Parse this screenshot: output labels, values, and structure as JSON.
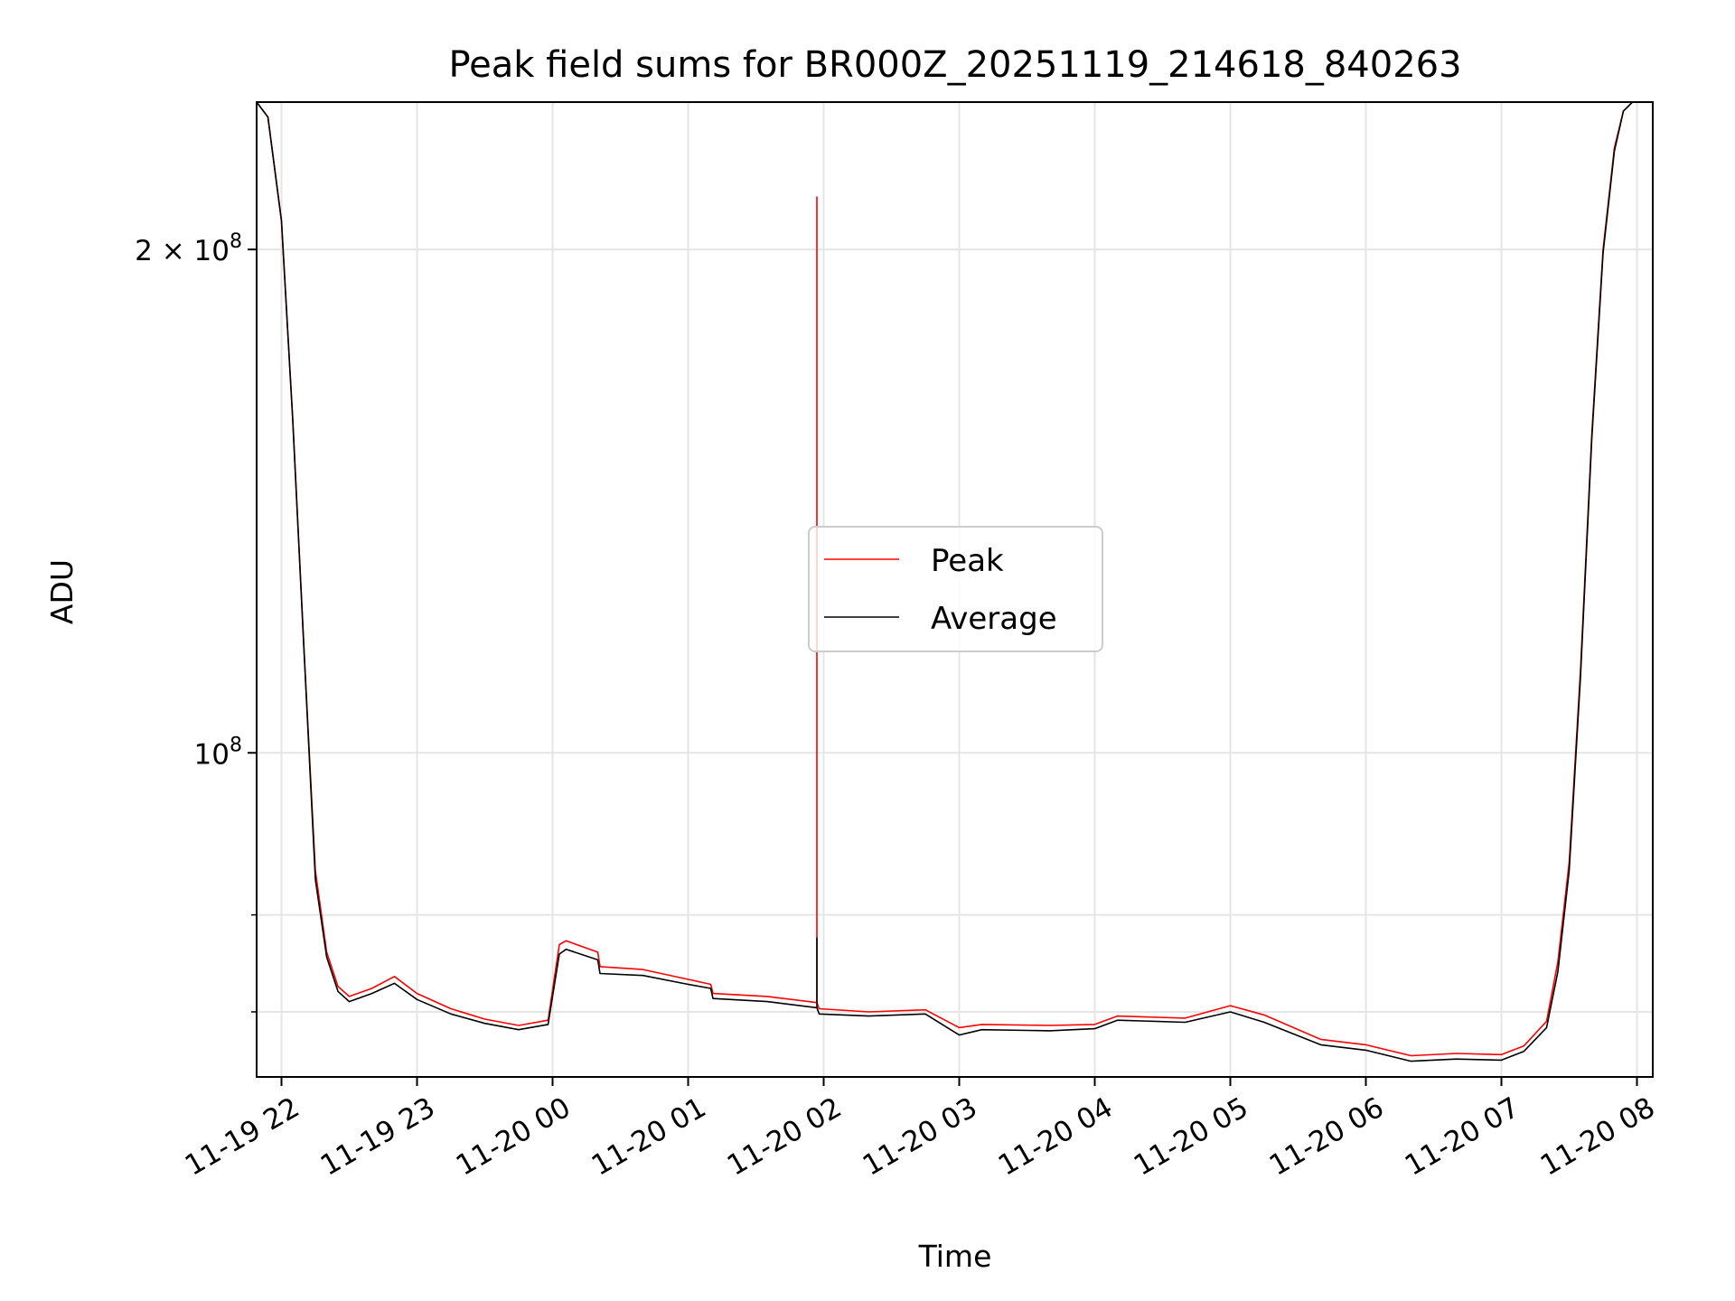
{
  "chart_data": {
    "type": "line",
    "title": "Peak field sums for BR000Z_20251119_214618_840263",
    "xlabel": "Time",
    "ylabel": "ADU",
    "yscale": "log",
    "grid": true,
    "legend_position": "center",
    "xlim": [
      "2025-11-19 21:49",
      "2025-11-20 08:07"
    ],
    "ylim": [
      64000000,
      245000000
    ],
    "x_ticks": [
      {
        "label": "11-19 22",
        "value": "2025-11-19 22:00"
      },
      {
        "label": "11-19 23",
        "value": "2025-11-19 23:00"
      },
      {
        "label": "11-20 00",
        "value": "2025-11-20 00:00"
      },
      {
        "label": "11-20 01",
        "value": "2025-11-20 01:00"
      },
      {
        "label": "11-20 02",
        "value": "2025-11-20 02:00"
      },
      {
        "label": "11-20 03",
        "value": "2025-11-20 03:00"
      },
      {
        "label": "11-20 04",
        "value": "2025-11-20 04:00"
      },
      {
        "label": "11-20 05",
        "value": "2025-11-20 05:00"
      },
      {
        "label": "11-20 06",
        "value": "2025-11-20 06:00"
      },
      {
        "label": "11-20 07",
        "value": "2025-11-20 07:00"
      },
      {
        "label": "11-20 08",
        "value": "2025-11-20 08:00"
      }
    ],
    "y_ticks": [
      {
        "label": "10",
        "exp": "8",
        "value": 100000000
      },
      {
        "label": "2 × 10",
        "exp": "8",
        "value": 200000000
      }
    ],
    "series": [
      {
        "name": "Peak",
        "color": "#ff0000",
        "x": [
          "2025-11-19 21:49",
          "2025-11-19 21:54",
          "2025-11-19 22:00",
          "2025-11-19 22:05",
          "2025-11-19 22:10",
          "2025-11-19 22:15",
          "2025-11-19 22:20",
          "2025-11-19 22:25",
          "2025-11-19 22:30",
          "2025-11-19 22:40",
          "2025-11-19 22:50",
          "2025-11-19 23:00",
          "2025-11-19 23:15",
          "2025-11-19 23:30",
          "2025-11-19 23:45",
          "2025-11-19 23:58",
          "2025-11-20 00:03",
          "2025-11-20 00:06",
          "2025-11-20 00:20",
          "2025-11-20 00:21",
          "2025-11-20 00:40",
          "2025-11-20 01:00",
          "2025-11-20 01:10",
          "2025-11-20 01:11",
          "2025-11-20 01:35",
          "2025-11-20 01:57",
          "2025-11-20 01:57",
          "2025-11-20 01:57",
          "2025-11-20 01:58",
          "2025-11-20 02:20",
          "2025-11-20 02:45",
          "2025-11-20 03:00",
          "2025-11-20 03:10",
          "2025-11-20 03:40",
          "2025-11-20 04:00",
          "2025-11-20 04:10",
          "2025-11-20 04:40",
          "2025-11-20 05:00",
          "2025-11-20 05:15",
          "2025-11-20 05:40",
          "2025-11-20 06:00",
          "2025-11-20 06:20",
          "2025-11-20 06:40",
          "2025-11-20 07:00",
          "2025-11-20 07:10",
          "2025-11-20 07:20",
          "2025-11-20 07:25",
          "2025-11-20 07:30",
          "2025-11-20 07:35",
          "2025-11-20 07:40",
          "2025-11-20 07:45",
          "2025-11-20 07:50",
          "2025-11-20 07:54",
          "2025-11-20 07:58"
        ],
        "values": [
          245000000,
          240000000,
          208000000,
          158000000,
          115000000,
          85000000,
          76000000,
          72500000,
          71500000,
          72300000,
          73500000,
          71800000,
          70300000,
          69300000,
          68700000,
          69200000,
          76800000,
          77200000,
          76000000,
          74500000,
          74200000,
          73200000,
          72700000,
          71800000,
          71500000,
          70900000,
          215000000,
          70900000,
          70300000,
          70000000,
          70200000,
          68500000,
          68800000,
          68700000,
          68800000,
          69600000,
          69400000,
          70600000,
          69700000,
          67400000,
          66900000,
          65900000,
          66100000,
          66000000,
          66800000,
          69100000,
          75000000,
          86000000,
          112000000,
          155000000,
          200000000,
          230000000,
          242000000,
          245000000
        ]
      },
      {
        "name": "Average",
        "color": "#000000",
        "x": [
          "2025-11-19 21:49",
          "2025-11-19 21:54",
          "2025-11-19 22:00",
          "2025-11-19 22:05",
          "2025-11-19 22:10",
          "2025-11-19 22:15",
          "2025-11-19 22:20",
          "2025-11-19 22:25",
          "2025-11-19 22:30",
          "2025-11-19 22:40",
          "2025-11-19 22:50",
          "2025-11-19 23:00",
          "2025-11-19 23:15",
          "2025-11-19 23:30",
          "2025-11-19 23:45",
          "2025-11-19 23:58",
          "2025-11-20 00:03",
          "2025-11-20 00:06",
          "2025-11-20 00:20",
          "2025-11-20 00:21",
          "2025-11-20 00:40",
          "2025-11-20 01:00",
          "2025-11-20 01:10",
          "2025-11-20 01:11",
          "2025-11-20 01:35",
          "2025-11-20 01:57",
          "2025-11-20 01:57",
          "2025-11-20 01:57",
          "2025-11-20 01:58",
          "2025-11-20 02:20",
          "2025-11-20 02:45",
          "2025-11-20 03:00",
          "2025-11-20 03:10",
          "2025-11-20 03:40",
          "2025-11-20 04:00",
          "2025-11-20 04:10",
          "2025-11-20 04:40",
          "2025-11-20 05:00",
          "2025-11-20 05:15",
          "2025-11-20 05:40",
          "2025-11-20 06:00",
          "2025-11-20 06:20",
          "2025-11-20 06:40",
          "2025-11-20 07:00",
          "2025-11-20 07:10",
          "2025-11-20 07:20",
          "2025-11-20 07:25",
          "2025-11-20 07:30",
          "2025-11-20 07:35",
          "2025-11-20 07:40",
          "2025-11-20 07:45",
          "2025-11-20 07:50",
          "2025-11-20 07:54",
          "2025-11-20 07:58"
        ],
        "values": [
          245000000,
          240000000,
          208000000,
          158000000,
          115000000,
          84000000,
          75500000,
          72000000,
          71000000,
          71800000,
          72800000,
          71200000,
          69800000,
          68900000,
          68300000,
          68800000,
          75800000,
          76300000,
          75200000,
          73800000,
          73600000,
          72700000,
          72300000,
          71300000,
          71000000,
          70400000,
          77500000,
          70400000,
          69800000,
          69600000,
          69800000,
          67800000,
          68300000,
          68200000,
          68400000,
          69200000,
          69000000,
          70000000,
          69000000,
          66900000,
          66400000,
          65400000,
          65600000,
          65500000,
          66300000,
          68500000,
          74000000,
          85000000,
          111000000,
          154000000,
          199000000,
          229000000,
          242000000,
          245000000
        ]
      }
    ]
  }
}
